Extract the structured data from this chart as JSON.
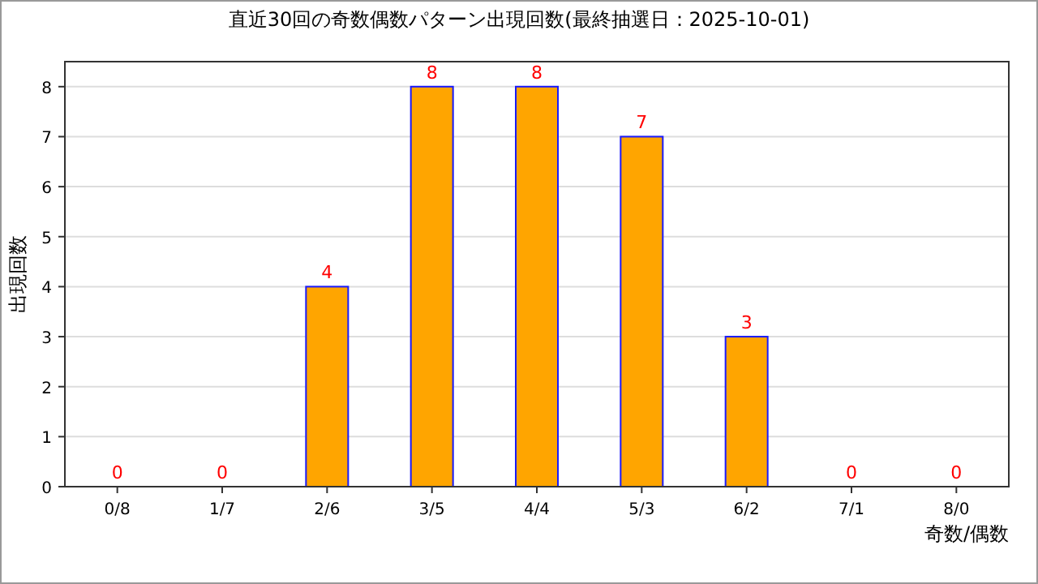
{
  "chart_data": {
    "type": "bar",
    "title": "直近30回の奇数偶数パターン出現回数(最終抽選日：2025-10-01)",
    "xlabel": "奇数/偶数",
    "ylabel": "出現回数",
    "categories": [
      "0/8",
      "1/7",
      "2/6",
      "3/5",
      "4/4",
      "5/3",
      "6/2",
      "7/1",
      "8/0"
    ],
    "values": [
      0,
      0,
      4,
      8,
      8,
      7,
      3,
      0,
      0
    ],
    "color": "#ffa500",
    "ylim": [
      0,
      8.5
    ],
    "yticks": [
      0,
      1,
      2,
      3,
      4,
      5,
      6,
      7,
      8
    ],
    "grid": "y",
    "data_labels": true
  }
}
